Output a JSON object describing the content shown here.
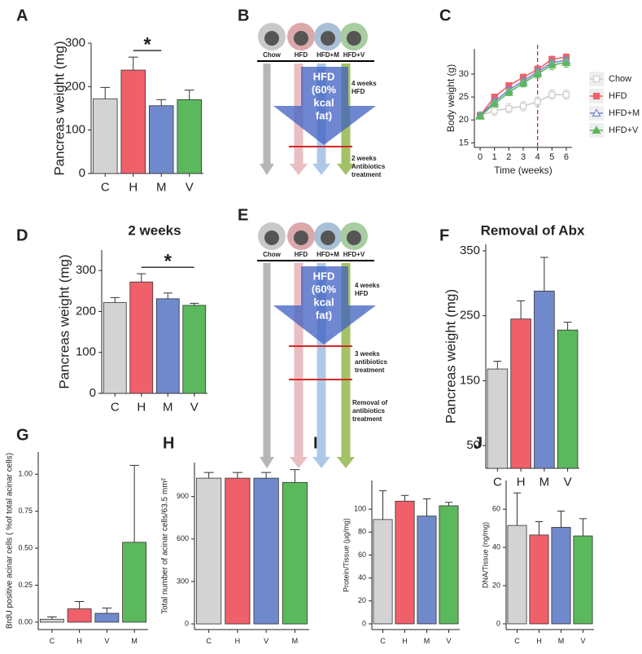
{
  "chart_data": [
    {
      "panel": "A",
      "type": "bar",
      "ylabel": "Pancreas weight (mg)",
      "categories": [
        "C",
        "H",
        "M",
        "V"
      ],
      "values": [
        172,
        238,
        156,
        170
      ],
      "errors": [
        26,
        30,
        14,
        22
      ],
      "colors": [
        "#d3d3d3",
        "#f0606a",
        "#7089cc",
        "#5cb85c"
      ],
      "ylim": [
        0,
        300
      ],
      "yticks": [
        0,
        100,
        200,
        300
      ],
      "annotation": "*"
    },
    {
      "panel": "C",
      "type": "line",
      "xlabel": "Time (weeks)",
      "ylabel": "Body weight (g)",
      "x": [
        0,
        1,
        2,
        3,
        4,
        5,
        6
      ],
      "xlim": [
        -0.4,
        6.4
      ],
      "xticks": [
        0,
        1,
        2,
        3,
        4,
        5,
        6
      ],
      "ylim": [
        14,
        35.5
      ],
      "yticks": [
        15,
        20,
        25,
        30
      ],
      "vline": 4,
      "vline_color": "#d62728",
      "legend": "right",
      "series": [
        {
          "name": "Chow",
          "color": "#cccccc",
          "marker": "open-square",
          "values": [
            21,
            22,
            22.5,
            23,
            24,
            25.5,
            25.5
          ],
          "errors": [
            0.6,
            1,
            1,
            1,
            1,
            1,
            1
          ]
        },
        {
          "name": "HFD",
          "color": "#f0606a",
          "marker": "square",
          "values": [
            21,
            25,
            27.5,
            29.3,
            31,
            33.2,
            33.7
          ],
          "errors": [
            0.5,
            0.6,
            0.6,
            0.7,
            0.8,
            0.7,
            0.7
          ]
        },
        {
          "name": "HFD+M",
          "color": "#7089cc",
          "marker": "open-triangle",
          "values": [
            21,
            24,
            26.5,
            28.5,
            30.5,
            32.5,
            33
          ],
          "errors": [
            0.5,
            0.6,
            0.6,
            0.7,
            0.8,
            0.8,
            0.8
          ]
        },
        {
          "name": "HFD+V",
          "color": "#5cb85c",
          "marker": "triangle",
          "values": [
            20.8,
            23.5,
            26,
            28,
            30,
            32,
            32.5
          ],
          "errors": [
            0.5,
            0.6,
            0.7,
            0.8,
            0.9,
            1,
            1
          ]
        }
      ]
    },
    {
      "panel": "D",
      "type": "bar",
      "title": "2 weeks",
      "ylabel": "Pancreas weight (mg)",
      "categories": [
        "C",
        "H",
        "M",
        "V"
      ],
      "values": [
        222,
        272,
        231,
        215
      ],
      "errors": [
        12,
        20,
        14,
        5
      ],
      "colors": [
        "#d3d3d3",
        "#f0606a",
        "#7089cc",
        "#5cb85c"
      ],
      "ylim": [
        0,
        350
      ],
      "yticks": [
        0,
        100,
        200,
        300
      ],
      "annotation": "*"
    },
    {
      "panel": "F",
      "type": "bar",
      "title": "Removal of Abx",
      "ylabel": "Pancreas weight (mg)",
      "categories": [
        "C",
        "H",
        "M",
        "V"
      ],
      "values": [
        168,
        245,
        288,
        228
      ],
      "errors": [
        12,
        28,
        52,
        12
      ],
      "colors": [
        "#d3d3d3",
        "#f0606a",
        "#7089cc",
        "#5cb85c"
      ],
      "ylim": [
        15,
        360
      ],
      "yticks": [
        50,
        150,
        250,
        350
      ]
    },
    {
      "panel": "G",
      "type": "bar",
      "ylabel": "BrdU positive acinar cells ( %of total acinar cells)",
      "categories": [
        "C",
        "H",
        "V",
        "M"
      ],
      "values": [
        0.02,
        0.09,
        0.06,
        0.54
      ],
      "errors": [
        0.015,
        0.05,
        0.035,
        0.52
      ],
      "colors": [
        "#d3d3d3",
        "#f0606a",
        "#7089cc",
        "#5cb85c"
      ],
      "ylim": [
        -0.05,
        1.15
      ],
      "yticks": [
        {
          "value": 0,
          "label": "0.00"
        },
        {
          "value": 0.25,
          "label": "0.25"
        },
        {
          "value": 0.5,
          "label": "0.50"
        },
        {
          "value": 0.75,
          "label": "0.75"
        },
        {
          "value": 1,
          "label": "1.00"
        }
      ]
    },
    {
      "panel": "H",
      "type": "bar",
      "ylabel": "Total number of acinar cells/63.5 mm²",
      "categories": [
        "C",
        "H",
        "V",
        "M"
      ],
      "values": [
        1030,
        1030,
        1030,
        1000
      ],
      "errors": [
        40,
        40,
        40,
        90
      ],
      "colors": [
        "#d3d3d3",
        "#f0606a",
        "#7089cc",
        "#5cb85c"
      ],
      "ylim": [
        -40,
        1140
      ],
      "yticks": [
        0,
        300,
        600,
        900
      ]
    },
    {
      "panel": "I",
      "type": "bar",
      "ylabel": "Protein/Tissue (µg/mg)",
      "categories": [
        "C",
        "H",
        "M",
        "V"
      ],
      "values": [
        91,
        107,
        94,
        103
      ],
      "errors": [
        25,
        5,
        15,
        3
      ],
      "colors": [
        "#d3d3d3",
        "#f0606a",
        "#7089cc",
        "#5cb85c"
      ],
      "ylim": [
        -5,
        125
      ],
      "yticks": [
        0,
        20,
        40,
        60,
        80,
        100
      ]
    },
    {
      "panel": "J",
      "type": "bar",
      "ylabel": "DNA/Tissue (ng/mg)",
      "categories": [
        "C",
        "H",
        "M",
        "V"
      ],
      "values": [
        51.5,
        46.5,
        50.5,
        46
      ],
      "errors": [
        17,
        7,
        8.5,
        9
      ],
      "colors": [
        "#d3d3d3",
        "#f0606a",
        "#7089cc",
        "#5cb85c"
      ],
      "ylim": [
        -3,
        75
      ],
      "yticks": [
        0,
        20,
        40,
        60
      ]
    }
  ],
  "diagrams": [
    {
      "panel": "B",
      "groups": [
        "Chow",
        "HFD",
        "HFD+M",
        "HFD+V"
      ],
      "arrow_text": [
        "HFD",
        "(60%",
        "kcal",
        "fat)"
      ],
      "notes": [
        [
          "4 weeks",
          "HFD"
        ],
        [
          "2 weeks",
          "Antibiotics",
          "treatment"
        ]
      ]
    },
    {
      "panel": "E",
      "groups": [
        "Chow",
        "HFD",
        "HFD+M",
        "HFD+V"
      ],
      "arrow_text": [
        "HFD",
        "(60%",
        "kcal",
        "fat)"
      ],
      "notes": [
        [
          "4 weeks",
          "HFD"
        ],
        [
          "3 weeks",
          "antibiotics",
          "treatment"
        ],
        [
          "Removal of",
          "antibiotics",
          "treatment"
        ]
      ]
    }
  ]
}
